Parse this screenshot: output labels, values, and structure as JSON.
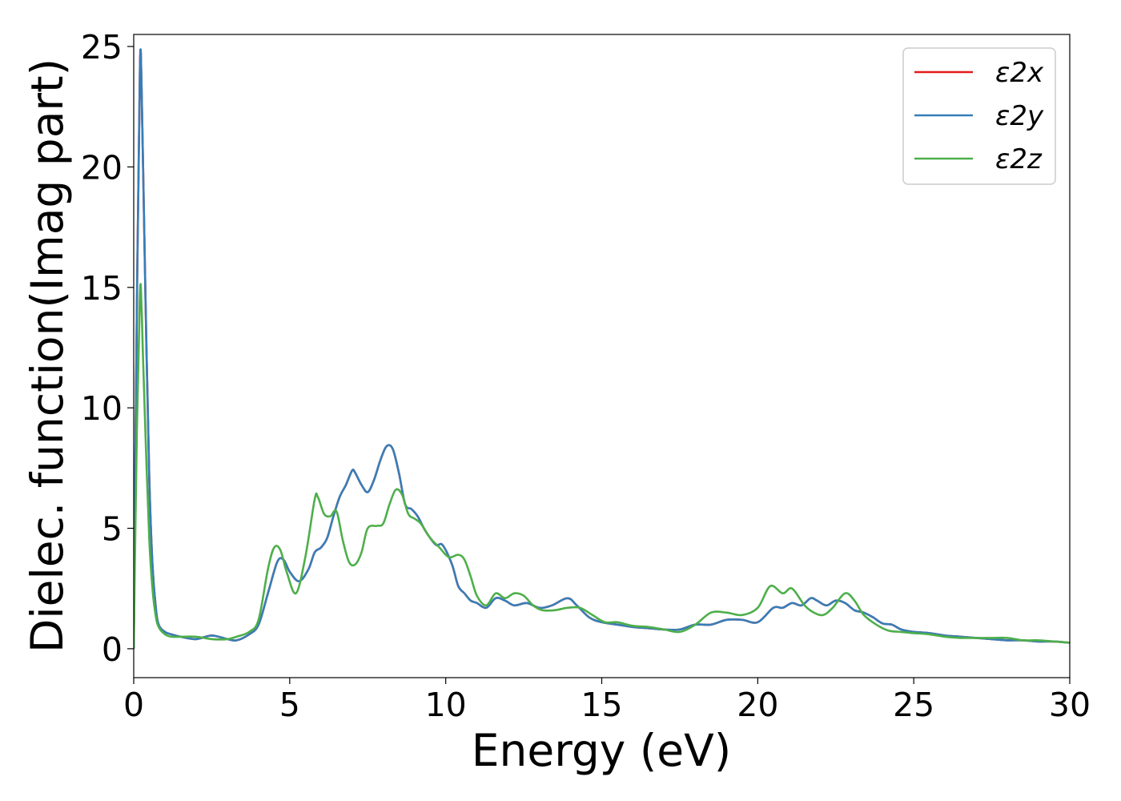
{
  "chart_data": {
    "type": "line",
    "xlabel": "Energy (eV)",
    "ylabel": "Dielec. function(Imag part)",
    "xlim": [
      0,
      30
    ],
    "ylim": [
      -1.2,
      25.5
    ],
    "xticks": [
      0,
      5,
      10,
      15,
      20,
      25,
      30
    ],
    "yticks": [
      0,
      5,
      10,
      15,
      20,
      25
    ],
    "legend_position": "top-right",
    "grid": false,
    "series": [
      {
        "name": "ε2x",
        "color": "#e41a1c",
        "x": [
          0,
          0.1,
          0.2,
          0.25,
          0.3,
          0.4,
          0.5,
          0.6,
          0.7,
          0.8,
          1.0,
          1.2,
          1.5,
          2.0,
          2.5,
          3.0,
          3.3,
          3.7,
          4.0,
          4.3,
          4.6,
          4.8,
          5.0,
          5.3,
          5.6,
          5.8,
          6.0,
          6.2,
          6.4,
          6.6,
          6.8,
          7.0,
          7.1,
          7.3,
          7.5,
          7.7,
          7.9,
          8.1,
          8.3,
          8.5,
          8.7,
          8.9,
          9.1,
          9.3,
          9.5,
          9.7,
          9.9,
          10.2,
          10.4,
          10.6,
          10.8,
          11.0,
          11.3,
          11.6,
          11.9,
          12.2,
          12.6,
          13.0,
          13.4,
          13.9,
          14.2,
          14.6,
          15.0,
          15.5,
          16.0,
          16.5,
          17.0,
          17.5,
          18.0,
          18.5,
          19.0,
          19.5,
          20.0,
          20.5,
          20.8,
          21.1,
          21.4,
          21.7,
          21.9,
          22.2,
          22.5,
          22.8,
          23.1,
          23.4,
          23.7,
          24.0,
          24.3,
          24.6,
          25.0,
          25.5,
          26.0,
          26.5,
          27.0,
          27.5,
          28.0,
          28.5,
          29.0,
          29.5,
          30.0
        ],
        "y": [
          0,
          14,
          24.2,
          23.5,
          20,
          13,
          7,
          3.5,
          1.8,
          1.0,
          0.7,
          0.6,
          0.5,
          0.4,
          0.55,
          0.4,
          0.35,
          0.6,
          1.0,
          2.3,
          3.6,
          3.7,
          3.2,
          2.8,
          3.3,
          4.0,
          4.2,
          4.6,
          5.5,
          6.3,
          6.8,
          7.4,
          7.3,
          6.8,
          6.5,
          7.0,
          7.8,
          8.4,
          8.3,
          7.3,
          6.0,
          5.8,
          5.5,
          5.0,
          4.6,
          4.3,
          4.3,
          3.5,
          2.6,
          2.3,
          2.0,
          1.9,
          1.7,
          2.1,
          2.0,
          1.8,
          1.9,
          1.7,
          1.8,
          2.1,
          1.8,
          1.3,
          1.1,
          1.0,
          0.9,
          0.85,
          0.8,
          0.8,
          1.0,
          1.0,
          1.2,
          1.2,
          1.1,
          1.7,
          1.7,
          1.9,
          1.8,
          2.1,
          2.0,
          1.8,
          2.0,
          1.9,
          1.6,
          1.5,
          1.3,
          1.05,
          1.0,
          0.8,
          0.7,
          0.65,
          0.55,
          0.5,
          0.45,
          0.4,
          0.35,
          0.35,
          0.3,
          0.3,
          0.25
        ]
      },
      {
        "name": "ε2y",
        "color": "#377eb8",
        "x": [
          0,
          0.1,
          0.2,
          0.25,
          0.3,
          0.4,
          0.5,
          0.6,
          0.7,
          0.8,
          1.0,
          1.2,
          1.5,
          2.0,
          2.5,
          3.0,
          3.3,
          3.7,
          4.0,
          4.3,
          4.6,
          4.8,
          5.0,
          5.3,
          5.6,
          5.8,
          6.0,
          6.2,
          6.4,
          6.6,
          6.8,
          7.0,
          7.1,
          7.3,
          7.5,
          7.7,
          7.9,
          8.1,
          8.3,
          8.5,
          8.7,
          8.9,
          9.1,
          9.3,
          9.5,
          9.7,
          9.9,
          10.2,
          10.4,
          10.6,
          10.8,
          11.0,
          11.3,
          11.6,
          11.9,
          12.2,
          12.6,
          13.0,
          13.4,
          13.9,
          14.2,
          14.6,
          15.0,
          15.5,
          16.0,
          16.5,
          17.0,
          17.5,
          18.0,
          18.5,
          19.0,
          19.5,
          20.0,
          20.5,
          20.8,
          21.1,
          21.4,
          21.7,
          21.9,
          22.2,
          22.5,
          22.8,
          23.1,
          23.4,
          23.7,
          24.0,
          24.3,
          24.6,
          25.0,
          25.5,
          26.0,
          26.5,
          27.0,
          27.5,
          28.0,
          28.5,
          29.0,
          29.5,
          30.0
        ],
        "y": [
          0,
          14,
          24.2,
          23.5,
          20,
          13,
          7,
          3.5,
          1.8,
          1.0,
          0.7,
          0.6,
          0.5,
          0.4,
          0.55,
          0.4,
          0.35,
          0.6,
          1.0,
          2.3,
          3.6,
          3.7,
          3.2,
          2.8,
          3.3,
          4.0,
          4.2,
          4.6,
          5.5,
          6.3,
          6.8,
          7.4,
          7.3,
          6.8,
          6.5,
          7.0,
          7.8,
          8.4,
          8.3,
          7.3,
          6.0,
          5.8,
          5.5,
          5.0,
          4.6,
          4.3,
          4.3,
          3.5,
          2.6,
          2.3,
          2.0,
          1.9,
          1.7,
          2.1,
          2.0,
          1.8,
          1.9,
          1.7,
          1.8,
          2.1,
          1.8,
          1.3,
          1.1,
          1.0,
          0.9,
          0.85,
          0.8,
          0.8,
          1.0,
          1.0,
          1.2,
          1.2,
          1.1,
          1.7,
          1.7,
          1.9,
          1.8,
          2.1,
          2.0,
          1.8,
          2.0,
          1.9,
          1.6,
          1.5,
          1.3,
          1.05,
          1.0,
          0.8,
          0.7,
          0.65,
          0.55,
          0.5,
          0.45,
          0.4,
          0.35,
          0.35,
          0.3,
          0.3,
          0.25
        ]
      },
      {
        "name": "ε2z",
        "color": "#4daf4a",
        "x": [
          0,
          0.1,
          0.2,
          0.25,
          0.3,
          0.4,
          0.5,
          0.6,
          0.7,
          0.8,
          1.0,
          1.2,
          1.5,
          2.0,
          2.5,
          3.0,
          3.3,
          3.7,
          4.0,
          4.3,
          4.5,
          4.7,
          4.9,
          5.2,
          5.5,
          5.8,
          5.9,
          6.1,
          6.3,
          6.5,
          6.7,
          6.9,
          7.1,
          7.3,
          7.5,
          7.8,
          8.0,
          8.2,
          8.4,
          8.6,
          8.8,
          9.0,
          9.2,
          9.5,
          9.8,
          10.1,
          10.4,
          10.6,
          10.8,
          11.0,
          11.3,
          11.6,
          11.9,
          12.2,
          12.5,
          12.8,
          13.1,
          13.5,
          13.9,
          14.3,
          14.7,
          15.1,
          15.5,
          16.0,
          16.5,
          17.0,
          17.5,
          18.0,
          18.5,
          19.0,
          19.5,
          20.0,
          20.4,
          20.8,
          21.1,
          21.5,
          21.8,
          22.1,
          22.4,
          22.8,
          23.1,
          23.4,
          23.8,
          24.2,
          24.6,
          25.0,
          25.5,
          26.0,
          26.5,
          27.0,
          27.5,
          28.0,
          28.5,
          29.0,
          29.5,
          30.0
        ],
        "y": [
          0,
          9,
          14.8,
          14.2,
          12,
          8,
          4.5,
          2.5,
          1.4,
          0.9,
          0.6,
          0.5,
          0.5,
          0.5,
          0.4,
          0.4,
          0.5,
          0.7,
          1.2,
          3.3,
          4.2,
          4.1,
          3.2,
          2.3,
          3.8,
          6.2,
          6.3,
          5.6,
          5.5,
          5.7,
          4.5,
          3.6,
          3.5,
          4.0,
          5.0,
          5.1,
          5.2,
          6.0,
          6.6,
          6.4,
          5.6,
          5.4,
          5.2,
          4.6,
          4.2,
          3.8,
          3.9,
          3.7,
          3.0,
          2.2,
          1.8,
          2.3,
          2.1,
          2.3,
          2.2,
          1.8,
          1.6,
          1.6,
          1.7,
          1.7,
          1.4,
          1.1,
          1.1,
          0.95,
          0.9,
          0.8,
          0.7,
          1.0,
          1.5,
          1.5,
          1.4,
          1.7,
          2.6,
          2.3,
          2.5,
          1.8,
          1.5,
          1.4,
          1.7,
          2.3,
          2.0,
          1.4,
          1.0,
          0.75,
          0.7,
          0.65,
          0.6,
          0.5,
          0.45,
          0.45,
          0.45,
          0.45,
          0.35,
          0.35,
          0.3,
          0.25
        ]
      }
    ]
  }
}
